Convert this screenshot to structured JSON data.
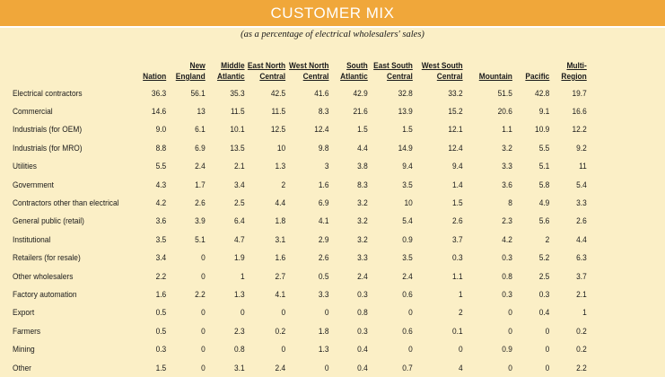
{
  "title": "CUSTOMER MIX",
  "subtitle": "(as a percentage of electrical wholesalers' sales)",
  "columns": [
    {
      "l1": "",
      "l2": "Nation"
    },
    {
      "l1": "New",
      "l2": "England"
    },
    {
      "l1": "Middle",
      "l2": "Atlantic"
    },
    {
      "l1": "East North",
      "l2": "Central"
    },
    {
      "l1": "West North",
      "l2": "Central"
    },
    {
      "l1": "South",
      "l2": "Atlantic"
    },
    {
      "l1": "East South",
      "l2": "Central"
    },
    {
      "l1": "West South",
      "l2": "Central"
    },
    {
      "l1": "",
      "l2": "Mountain"
    },
    {
      "l1": "",
      "l2": "Pacific"
    },
    {
      "l1": "Multi-",
      "l2": "Region"
    }
  ],
  "rows": [
    {
      "label": "Electrical contractors",
      "values": [
        "36.3",
        "56.1",
        "35.3",
        "42.5",
        "41.6",
        "42.9",
        "32.8",
        "33.2",
        "51.5",
        "42.8",
        "19.7"
      ]
    },
    {
      "label": "Commercial",
      "values": [
        "14.6",
        "13",
        "11.5",
        "11.5",
        "8.3",
        "21.6",
        "13.9",
        "15.2",
        "20.6",
        "9.1",
        "16.6"
      ]
    },
    {
      "label": "Industrials (for OEM)",
      "values": [
        "9.0",
        "6.1",
        "10.1",
        "12.5",
        "12.4",
        "1.5",
        "1.5",
        "12.1",
        "1.1",
        "10.9",
        "12.2"
      ]
    },
    {
      "label": "Industrials (for MRO)",
      "values": [
        "8.8",
        "6.9",
        "13.5",
        "10",
        "9.8",
        "4.4",
        "14.9",
        "12.4",
        "3.2",
        "5.5",
        "9.2"
      ]
    },
    {
      "label": "Utilities",
      "values": [
        "5.5",
        "2.4",
        "2.1",
        "1.3",
        "3",
        "3.8",
        "9.4",
        "9.4",
        "3.3",
        "5.1",
        "11"
      ]
    },
    {
      "label": "Government",
      "values": [
        "4.3",
        "1.7",
        "3.4",
        "2",
        "1.6",
        "8.3",
        "3.5",
        "1.4",
        "3.6",
        "5.8",
        "5.4"
      ]
    },
    {
      "label": "Contractors other than electrical",
      "values": [
        "4.2",
        "2.6",
        "2.5",
        "4.4",
        "6.9",
        "3.2",
        "10",
        "1.5",
        "8",
        "4.9",
        "3.3"
      ]
    },
    {
      "label": "General public (retail)",
      "values": [
        "3.6",
        "3.9",
        "6.4",
        "1.8",
        "4.1",
        "3.2",
        "5.4",
        "2.6",
        "2.3",
        "5.6",
        "2.6"
      ]
    },
    {
      "label": "Institutional",
      "values": [
        "3.5",
        "5.1",
        "4.7",
        "3.1",
        "2.9",
        "3.2",
        "0.9",
        "3.7",
        "4.2",
        "2",
        "4.4"
      ]
    },
    {
      "label": "Retailers (for resale)",
      "values": [
        "3.4",
        "0",
        "1.9",
        "1.6",
        "2.6",
        "3.3",
        "3.5",
        "0.3",
        "0.3",
        "5.2",
        "6.3"
      ]
    },
    {
      "label": "Other wholesalers",
      "values": [
        "2.2",
        "0",
        "1",
        "2.7",
        "0.5",
        "2.4",
        "2.4",
        "1.1",
        "0.8",
        "2.5",
        "3.7"
      ]
    },
    {
      "label": "Factory automation",
      "values": [
        "1.6",
        "2.2",
        "1.3",
        "4.1",
        "3.3",
        "0.3",
        "0.6",
        "1",
        "0.3",
        "0.3",
        "2.1"
      ]
    },
    {
      "label": "Export",
      "values": [
        "0.5",
        "0",
        "0",
        "0",
        "0",
        "0.8",
        "0",
        "2",
        "0",
        "0.4",
        "1"
      ]
    },
    {
      "label": "Farmers",
      "values": [
        "0.5",
        "0",
        "2.3",
        "0.2",
        "1.8",
        "0.3",
        "0.6",
        "0.1",
        "0",
        "0",
        "0.2"
      ]
    },
    {
      "label": "Mining",
      "values": [
        "0.3",
        "0",
        "0.8",
        "0",
        "1.3",
        "0.4",
        "0",
        "0",
        "0.9",
        "0",
        "0.2"
      ]
    },
    {
      "label": "Other",
      "values": [
        "1.5",
        "0",
        "3.1",
        "2.4",
        "0",
        "0.4",
        "0.7",
        "4",
        "0",
        "0",
        "2.2"
      ]
    }
  ]
}
